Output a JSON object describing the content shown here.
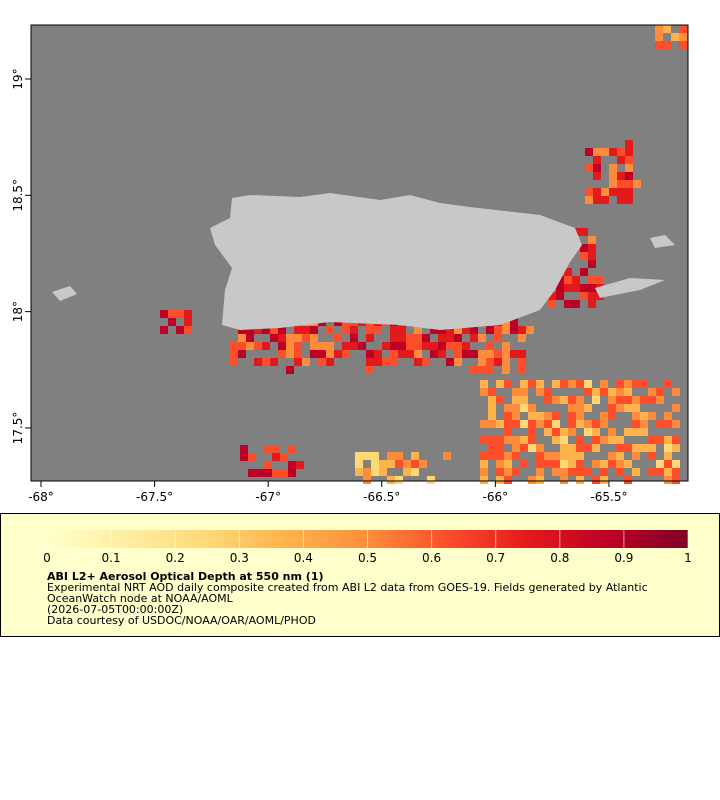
{
  "chart_data": {
    "type": "map",
    "xlim": [
      -68.044,
      -65.152
    ],
    "ylim": [
      17.272,
      19.232
    ],
    "xticks": [
      {
        "value": -68,
        "label": "-68°"
      },
      {
        "value": -67.5,
        "label": "-67.5°"
      },
      {
        "value": -67,
        "label": "-67°"
      },
      {
        "value": -66.5,
        "label": "-66.5°"
      },
      {
        "value": -66,
        "label": "-66°"
      },
      {
        "value": -65.5,
        "label": "-65.5°"
      }
    ],
    "yticks": [
      {
        "value": 17.5,
        "label": "17.5°"
      },
      {
        "value": 18,
        "label": "18°"
      },
      {
        "value": 18.5,
        "label": "18.5°"
      },
      {
        "value": 19,
        "label": "19°"
      }
    ],
    "colorbar": {
      "lim": [
        0,
        1
      ],
      "ticks": [
        0,
        0.1,
        0.2,
        0.3,
        0.4,
        0.5,
        0.6,
        0.7,
        0.8,
        0.9,
        1
      ],
      "colors": [
        "#ffffcc",
        "#ffeda0",
        "#fed976",
        "#feb24c",
        "#fd8d3c",
        "#fc4e2a",
        "#e31a1c",
        "#bd0026",
        "#800026"
      ]
    },
    "title": "ABI L2+ Aerosol Optical Depth at 550 nm (1)",
    "caption": [
      "Experimental NRT AOD daily composite created from ABI L2 data from GOES-19. Fields generated by Atlantic",
      "OceanWatch node at NOAA/AOML",
      "(2026-07-05T00:00:00Z)",
      "Data courtesy of USDOC/NOAA/OAR/AOML/PHOD"
    ]
  }
}
